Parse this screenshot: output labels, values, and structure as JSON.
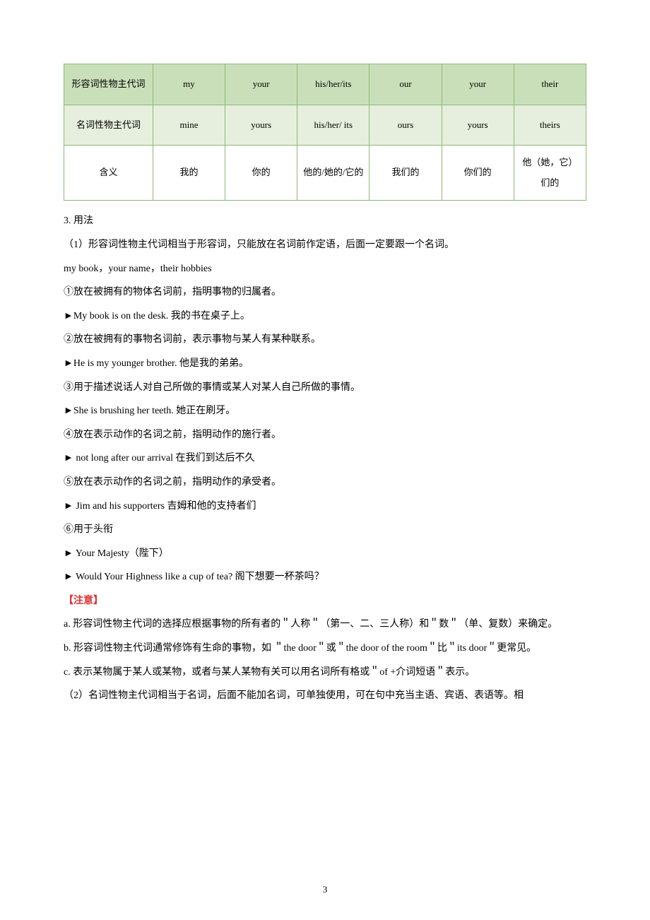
{
  "table": {
    "border_color": "#8fb77a",
    "header_bg": "#c9dfb9",
    "data_bg": "#e6efdd",
    "meaning_bg": "#ffffff",
    "rows": [
      {
        "label": "形容词性物主代词",
        "cells": [
          "my",
          "your",
          "his/her/its",
          "our",
          "your",
          "their"
        ]
      },
      {
        "label": "名词性物主代词",
        "cells": [
          "mine",
          "yours",
          "his/her/ its",
          "ours",
          "yours",
          "theirs"
        ]
      },
      {
        "label": "含义",
        "cells": [
          "我的",
          "你的",
          "他的/她的/它的",
          "我们的",
          "你们的",
          "他（她，它）们的"
        ]
      }
    ]
  },
  "body": {
    "heading": "3. 用法",
    "p1": "（1）形容词性物主代词相当于形容词，只能放在名词前作定语，后面一定要跟一个名词。",
    "p2": "my book，your name，their hobbies",
    "p3": "①放在被拥有的物体名词前，指明事物的归属者。",
    "p4": "►My book is on the desk. 我的书在桌子上。",
    "p5": "②放在被拥有的事物名词前，表示事物与某人有某种联系。",
    "p6": "►He is my younger brother. 他是我的弟弟。",
    "p7": "③用于描述说话人对自己所做的事情或某人对某人自己所做的事情。",
    "p8": "►She is brushing her teeth. 她正在刷牙。",
    "p9": "④放在表示动作的名词之前，指明动作的施行者。",
    "p10": "► not long after our arrival 在我们到达后不久",
    "p11": "⑤放在表示动作的名词之前，指明动作的承受者。",
    "p12": "► Jim and his supporters 吉姆和他的支持者们",
    "p13": "⑥用于头衔",
    "p14": "► Your Majesty（陛下）",
    "p15": "► Would Your Highness like a cup of tea? 阁下想要一杯茶吗？",
    "note_label": "【注意】",
    "na": "a. 形容词性物主代词的选择应根据事物的所有者的＂人称＂（第一、二、三人称）和＂数＂（单、复数）来确定。",
    "nb": "b. 形容词性物主代词通常修饰有生命的事物，如 ＂the door＂或＂the door of the room＂比＂its door＂更常见。",
    "nc": "c. 表示某物属于某人或某物，或者与某人某物有关可以用名词所有格或＂of +介词短语＂表示。",
    "p16": "（2）名词性物主代词相当于名词，后面不能加名词，可单独使用，可在句中充当主语、宾语、表语等。相"
  },
  "page_number": "3"
}
